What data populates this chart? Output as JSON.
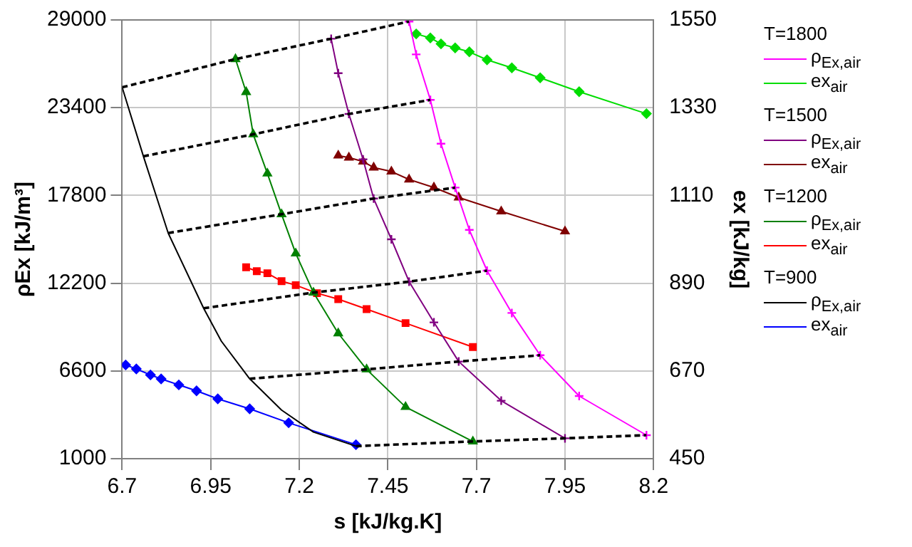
{
  "chart_data": {
    "type": "line",
    "xlabel": "s [kJ/kg.K]",
    "ylabel": "ρEx [kJ/m³]",
    "y2label": "ex [kJ/kg]",
    "xlim": [
      6.7,
      8.2
    ],
    "xticks": [
      6.7,
      6.95,
      7.2,
      7.45,
      7.7,
      7.95,
      8.2
    ],
    "ylim": [
      1000,
      29000
    ],
    "yticks": [
      1000,
      6600,
      12200,
      17800,
      23400,
      29000
    ],
    "y2lim": [
      450,
      1550
    ],
    "y2ticks": [
      450,
      670,
      890,
      1110,
      1330,
      1550
    ],
    "grid": true,
    "legend": "right",
    "line_style": "solid",
    "annotations": [
      "T=1800",
      "T=1500",
      "T=1200",
      "T=900"
    ],
    "series": [
      {
        "name": "ρ$_{Ex,air}$",
        "color": "#ff00ff",
        "marker": "cross",
        "x": [
          7.51,
          7.53,
          7.57,
          7.6,
          7.64,
          7.68,
          7.73,
          7.8,
          7.88,
          7.99,
          8.18
        ],
        "values": [
          28900,
          26800,
          23900,
          21100,
          18300,
          15600,
          13000,
          10300,
          7600,
          5000,
          2500
        ]
      },
      {
        "name": "ex$_{air}$",
        "color": "#00dd00",
        "marker": "diamond",
        "axis": "y2",
        "x": [
          7.53,
          7.57,
          7.6,
          7.64,
          7.68,
          7.73,
          7.8,
          7.88,
          7.99,
          8.18
        ],
        "values": [
          1515,
          1505,
          1490,
          1480,
          1470,
          1450,
          1430,
          1405,
          1370,
          1315
        ]
      },
      {
        "name": "ρ$_{Ex,air}$",
        "color": "#800080",
        "marker": "cross",
        "x": [
          7.29,
          7.31,
          7.34,
          7.38,
          7.41,
          7.46,
          7.51,
          7.58,
          7.65,
          7.77,
          7.95
        ],
        "values": [
          27800,
          25600,
          23000,
          20100,
          17600,
          15000,
          12300,
          9700,
          7200,
          4700,
          2300
        ]
      },
      {
        "name": "ex$_{air}$",
        "color": "#800000",
        "marker": "triangle",
        "axis": "y2",
        "x": [
          7.31,
          7.34,
          7.38,
          7.41,
          7.46,
          7.51,
          7.58,
          7.65,
          7.77,
          7.95
        ],
        "values": [
          1210,
          1205,
          1195,
          1180,
          1170,
          1150,
          1130,
          1105,
          1070,
          1020
        ]
      },
      {
        "name": "ρ$_{Ex,air}$",
        "color": "#008000",
        "marker": "triangle",
        "x": [
          7.02,
          7.05,
          7.07,
          7.11,
          7.15,
          7.19,
          7.24,
          7.31,
          7.39,
          7.5,
          7.69
        ],
        "values": [
          26500,
          24400,
          21700,
          19200,
          16600,
          14100,
          11600,
          9000,
          6700,
          4300,
          2100
        ]
      },
      {
        "name": "ex$_{air}$",
        "color": "#ff0000",
        "marker": "square",
        "axis": "y2",
        "x": [
          7.05,
          7.08,
          7.11,
          7.15,
          7.19,
          7.25,
          7.31,
          7.39,
          7.5,
          7.69
        ],
        "values": [
          930,
          920,
          915,
          895,
          885,
          865,
          850,
          825,
          790,
          730
        ]
      },
      {
        "name": "ρ$_{Ex,air}$",
        "color": "#000000",
        "marker": "none",
        "x": [
          6.7,
          6.76,
          6.83,
          6.93,
          6.98,
          7.06,
          7.15,
          7.24,
          7.36
        ],
        "values": [
          24700,
          20300,
          15400,
          10600,
          8500,
          6100,
          4100,
          2700,
          1800
        ]
      },
      {
        "name": "ex$_{air}$",
        "color": "#0000ff",
        "marker": "diamond",
        "axis": "y2",
        "x": [
          6.71,
          6.74,
          6.78,
          6.81,
          6.86,
          6.91,
          6.97,
          7.06,
          7.17,
          7.36
        ],
        "values": [
          685,
          675,
          660,
          650,
          635,
          620,
          600,
          575,
          540,
          485
        ]
      },
      {
        "color": "#000000",
        "marker": "none",
        "line_style": "dashed",
        "x": [
          6.7,
          7.02,
          7.29,
          7.51
        ],
        "values": [
          24700,
          26500,
          27800,
          28900
        ]
      },
      {
        "color": "#000000",
        "marker": "none",
        "line_style": "dashed",
        "x": [
          6.76,
          7.07,
          7.34,
          7.57
        ],
        "values": [
          20300,
          21700,
          23000,
          23900
        ]
      },
      {
        "color": "#000000",
        "marker": "none",
        "line_style": "dashed",
        "x": [
          6.83,
          7.15,
          7.41,
          7.64
        ],
        "values": [
          15400,
          16600,
          17600,
          18300
        ]
      },
      {
        "color": "#000000",
        "marker": "none",
        "line_style": "dashed",
        "x": [
          6.93,
          7.24,
          7.51,
          7.73
        ],
        "values": [
          10600,
          11600,
          12300,
          13000
        ]
      },
      {
        "color": "#000000",
        "marker": "none",
        "line_style": "dashed",
        "x": [
          7.06,
          7.39,
          7.65,
          7.88
        ],
        "values": [
          6100,
          6700,
          7200,
          7600
        ]
      },
      {
        "color": "#000000",
        "marker": "none",
        "line_style": "dashed",
        "x": [
          7.36,
          7.69,
          7.95,
          8.18
        ],
        "values": [
          1800,
          2100,
          2300,
          2500
        ]
      }
    ]
  }
}
